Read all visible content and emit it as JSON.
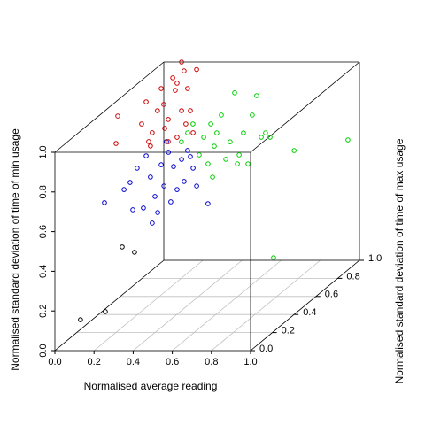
{
  "chart_data": {
    "type": "scatter3d",
    "xlabel": "Normalised average reading",
    "ylabel": "Normalised standard deviation of time of max usage",
    "zlabel": "Normalised standard deviation of time of min usage",
    "xlim": [
      0,
      1
    ],
    "ylim": [
      0,
      1
    ],
    "zlim": [
      0,
      1
    ],
    "xticks": [
      {
        "value": 0,
        "label": "0.0"
      },
      0.2,
      0.4,
      0.6,
      0.8,
      {
        "value": 1,
        "label": "1.0"
      }
    ],
    "yticks": [
      {
        "value": 0,
        "label": "0.0"
      },
      0.2,
      0.4,
      0.6,
      0.8,
      {
        "value": 1,
        "label": "1.0"
      }
    ],
    "zticks": [
      {
        "value": 0,
        "label": "0.0"
      },
      0.2,
      0.4,
      0.6,
      0.8,
      {
        "value": 1,
        "label": "1.0"
      }
    ],
    "grid": true,
    "series": [
      {
        "color": "#000000",
        "x": [
          0.103,
          0.23,
          0.316,
          0.379
        ],
        "y": [
          0.05,
          0.05,
          0.05,
          0.05
        ],
        "z": [
          0.133,
          0.174,
          0.5,
          0.473
        ]
      },
      {
        "color": "#0000cd",
        "x": [
          0.142,
          0.242,
          0.273,
          0.309,
          0.341,
          0.355,
          0.377,
          0.4,
          0.414,
          0.432,
          0.446,
          0.469,
          0.481,
          0.495,
          0.513,
          0.536,
          0.549,
          0.567,
          0.595,
          0.613,
          0.671,
          0.386,
          0.287,
          0.459,
          0.581
        ],
        "y": [
          0.2,
          0.2,
          0.2,
          0.2,
          0.2,
          0.2,
          0.2,
          0.2,
          0.2,
          0.2,
          0.2,
          0.2,
          0.2,
          0.2,
          0.2,
          0.2,
          0.2,
          0.2,
          0.2,
          0.2,
          0.2,
          0.2,
          0.2,
          0.2,
          0.2
        ],
        "z": [
          0.655,
          0.721,
          0.757,
          0.829,
          0.628,
          0.891,
          0.784,
          0.686,
          0.605,
          0.846,
          0.739,
          0.909,
          0.659,
          0.837,
          0.721,
          0.873,
          0.762,
          0.918,
          0.829,
          0.739,
          0.65,
          0.552,
          0.619,
          0.963,
          0.887
        ]
      },
      {
        "color": "#cd0000",
        "x": [
          0.034,
          0.043,
          0.165,
          0.201,
          0.219,
          0.246,
          0.283,
          0.301,
          0.346,
          0.369,
          0.391,
          0.414,
          0.21,
          0.301,
          0.428,
          0.111,
          0.021,
          0.098,
          0.157,
          0.17,
          0.215,
          0.233,
          0.279,
          0.202,
          0.179
        ],
        "y": [
          0.5,
          0.5,
          0.5,
          0.5,
          0.5,
          0.5,
          0.5,
          0.5,
          0.5,
          0.5,
          0.5,
          0.5,
          0.5,
          0.5,
          0.5,
          0.8,
          0.8,
          0.8,
          0.8,
          0.8,
          0.8,
          0.8,
          0.8,
          0.8,
          0.8
        ],
        "z": [
          0.817,
          0.955,
          0.915,
          0.826,
          0.871,
          0.982,
          0.893,
          0.938,
          0.848,
          0.982,
          0.915,
          0.982,
          0.804,
          0.826,
          0.871,
          0.877,
          0.89,
          0.957,
          1.011,
          0.948,
          1.046,
          0.957,
          1.053,
          1.091,
          0.984
        ]
      },
      {
        "color": "#00cd00",
        "x": [
          0.257,
          0.289,
          0.316,
          0.348,
          0.371,
          0.393,
          0.407,
          0.425,
          0.438,
          0.461,
          0.484,
          0.506,
          0.529,
          0.552,
          0.574,
          0.597,
          0.619,
          0.642,
          0.665,
          0.687,
          0.71,
          0.416,
          0.833,
          0.941,
          0.728,
          0.543
        ],
        "y": [
          0.7,
          0.7,
          0.7,
          0.7,
          0.7,
          0.7,
          0.7,
          0.7,
          0.7,
          0.7,
          0.7,
          0.7,
          0.7,
          0.7,
          0.7,
          0.7,
          0.7,
          0.7,
          0.7,
          0.7,
          0.7,
          0.7,
          0.7,
          1,
          0.7,
          0.7
        ],
        "z": [
          0.734,
          0.779,
          0.824,
          0.668,
          0.757,
          0.623,
          0.824,
          0.712,
          0.779,
          0.869,
          0.646,
          0.734,
          0.981,
          0.668,
          0.779,
          0.623,
          0.869,
          0.967,
          0.757,
          0.779,
          0.757,
          0.556,
          0.69,
          0.607,
          0.15,
          0.623
        ]
      }
    ]
  }
}
